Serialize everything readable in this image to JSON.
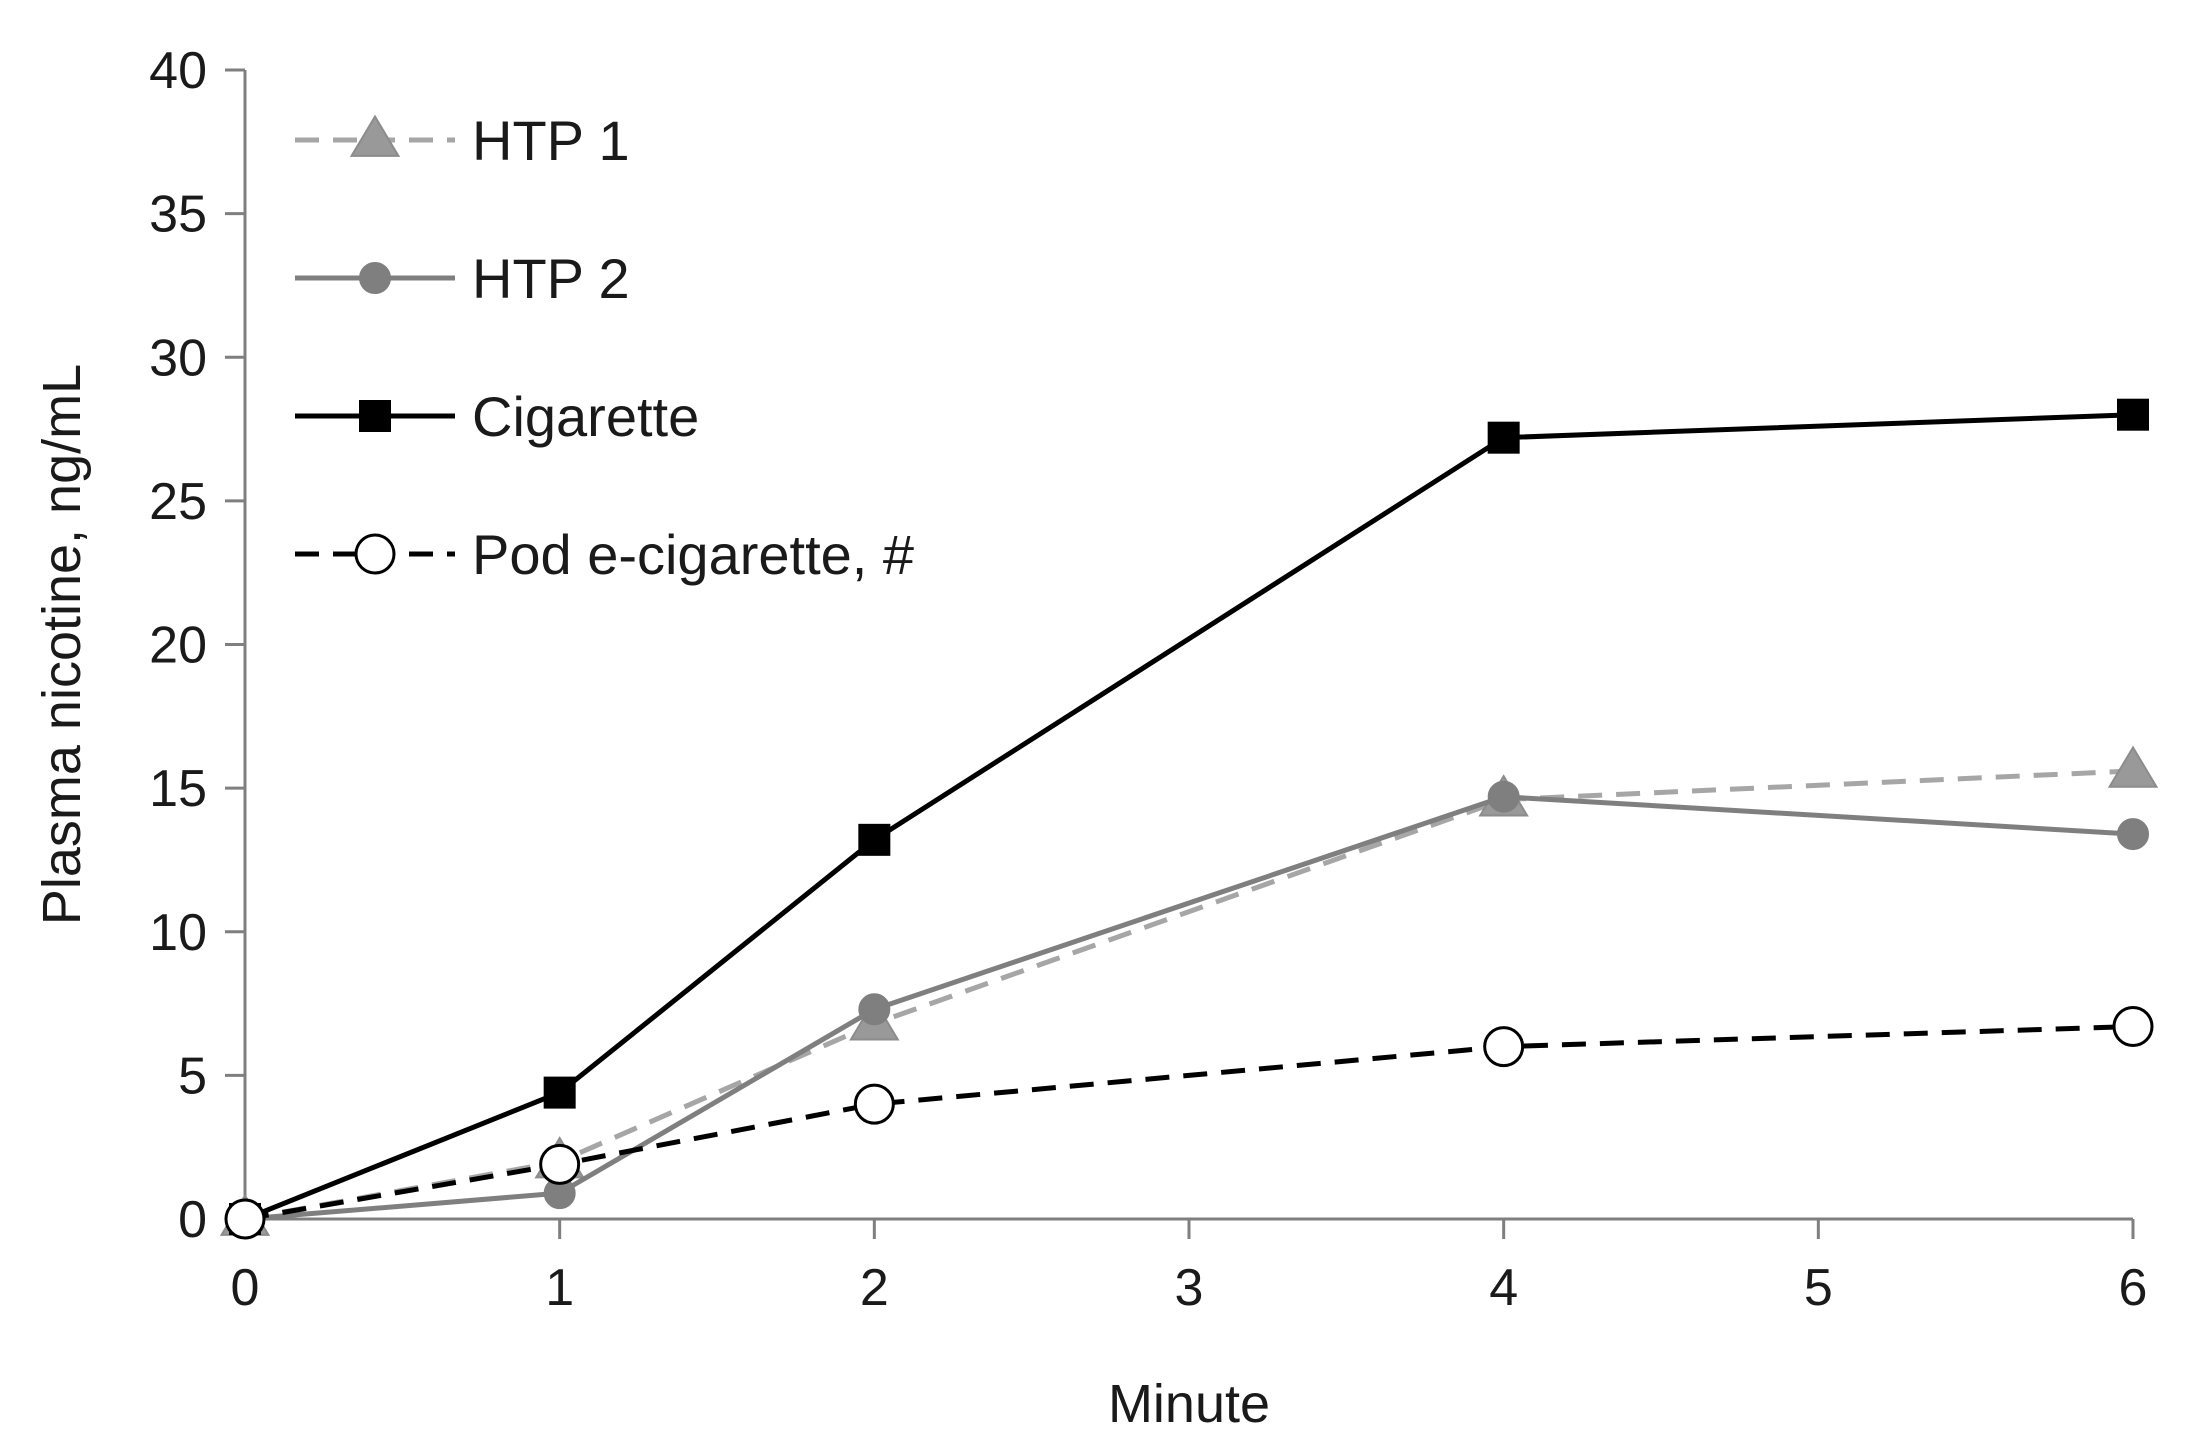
{
  "chart_data": {
    "type": "line",
    "title": "",
    "xlabel": "Minute",
    "ylabel": "Plasma nicotine, ng/mL",
    "xlim": [
      0,
      6
    ],
    "ylim": [
      0,
      40
    ],
    "xticks": [
      0,
      1,
      2,
      3,
      4,
      5,
      6
    ],
    "yticks": [
      0,
      5,
      10,
      15,
      20,
      25,
      30,
      35,
      40
    ],
    "grid": false,
    "legend_position": "top-left",
    "series": [
      {
        "name": "HTP 1",
        "x": [
          0,
          1,
          2,
          4,
          6
        ],
        "values": [
          0,
          2.0,
          6.8,
          14.6,
          15.6
        ],
        "color": "#a6a6a6",
        "marker": "triangle",
        "marker_fill": "#999999",
        "dash": "dashed"
      },
      {
        "name": "HTP 2",
        "x": [
          0,
          1,
          2,
          4,
          6
        ],
        "values": [
          0,
          0.9,
          7.3,
          14.7,
          13.4
        ],
        "color": "#7f7f7f",
        "marker": "circle",
        "marker_fill": "#7f7f7f",
        "dash": "solid"
      },
      {
        "name": "Cigarette",
        "x": [
          0,
          1,
          2,
          4,
          6
        ],
        "values": [
          0,
          4.4,
          13.2,
          27.2,
          28.0
        ],
        "color": "#000000",
        "marker": "square",
        "marker_fill": "#000000",
        "dash": "solid"
      },
      {
        "name": "Pod e-cigarette, #",
        "x": [
          0,
          1,
          2,
          4,
          6
        ],
        "values": [
          0,
          1.9,
          4.0,
          6.0,
          6.7
        ],
        "color": "#000000",
        "marker": "circle-open",
        "marker_fill": "#ffffff",
        "dash": "dashed"
      }
    ]
  }
}
